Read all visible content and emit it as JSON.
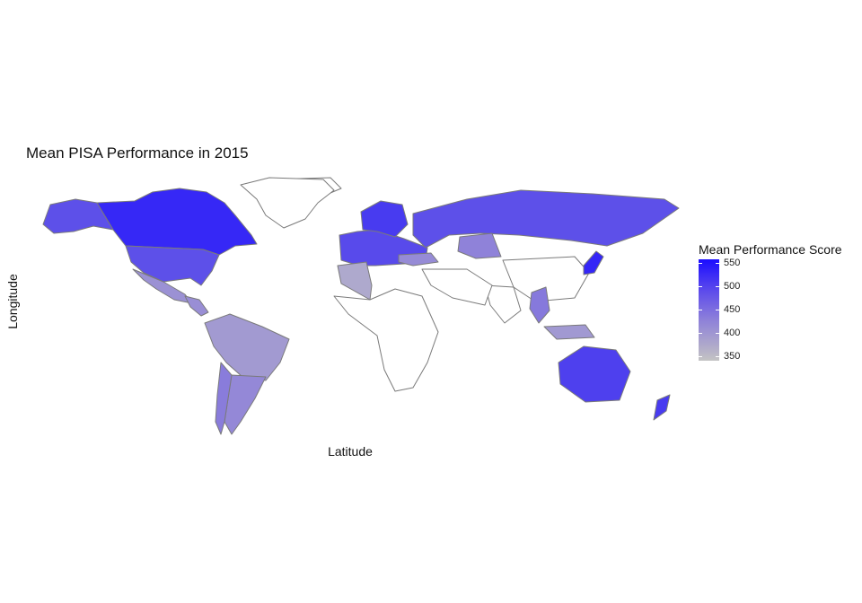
{
  "chart": {
    "title": "Mean PISA Performance in 2015",
    "xlabel": "Latitude",
    "ylabel": "Longitude"
  },
  "legend": {
    "title": "Mean Performance Score",
    "ticks": [
      "550",
      "500",
      "450",
      "400",
      "350"
    ],
    "min": 330,
    "max": 555,
    "low_color": "#c4c4c4",
    "high_color": "#1a0cff"
  },
  "chart_data": {
    "type": "choropleth",
    "value_range": [
      330,
      555
    ],
    "no_data_color": "#ffffff",
    "regions": [
      {
        "region": "Canada",
        "value": 528
      },
      {
        "region": "Greenland",
        "value": null
      },
      {
        "region": "Alaska (United States)",
        "value": 490
      },
      {
        "region": "United States",
        "value": 490
      },
      {
        "region": "Mexico",
        "value": 416
      },
      {
        "region": "Central America",
        "value": 420
      },
      {
        "region": "Colombia / Peru / Brazil",
        "value": 400
      },
      {
        "region": "Argentina / Uruguay",
        "value": 430
      },
      {
        "region": "Chile",
        "value": 447
      },
      {
        "region": "Western Europe",
        "value": 495
      },
      {
        "region": "Scandinavia",
        "value": 510
      },
      {
        "region": "Russia",
        "value": 490
      },
      {
        "region": "Kazakhstan",
        "value": 440
      },
      {
        "region": "Turkey",
        "value": 425
      },
      {
        "region": "Algeria",
        "value": 376
      },
      {
        "region": "China",
        "value": null
      },
      {
        "region": "Japan",
        "value": 530
      },
      {
        "region": "Vietnam / Thailand",
        "value": 450
      },
      {
        "region": "Indonesia",
        "value": 403
      },
      {
        "region": "Australia",
        "value": 505
      },
      {
        "region": "New Zealand",
        "value": 510
      }
    ]
  }
}
